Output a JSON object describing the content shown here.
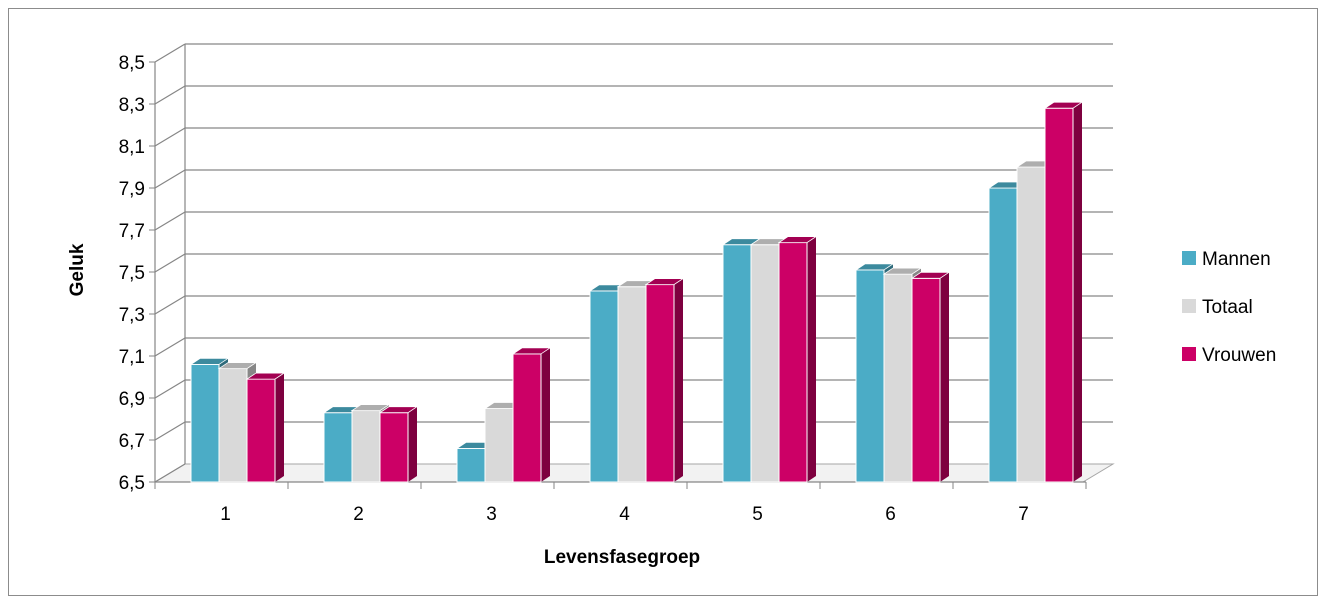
{
  "chart_data": {
    "type": "bar",
    "title": "",
    "xlabel": "Levensfasegroep",
    "ylabel": "Geluk",
    "categories": [
      "1",
      "2",
      "3",
      "4",
      "5",
      "6",
      "7"
    ],
    "series": [
      {
        "name": "Mannen",
        "values": [
          7.06,
          6.83,
          6.66,
          7.41,
          7.63,
          7.51,
          7.9
        ],
        "color": "#4bacc6"
      },
      {
        "name": "Totaal",
        "values": [
          7.04,
          6.84,
          6.85,
          7.43,
          7.63,
          7.49,
          8.0
        ],
        "color": "#d9d9d9"
      },
      {
        "name": "Vrouwen",
        "values": [
          6.99,
          6.83,
          7.11,
          7.44,
          7.64,
          7.47,
          8.28
        ],
        "color": "#cc0066"
      }
    ],
    "ylim": [
      6.5,
      8.5
    ],
    "yticks": [
      "6,5",
      "6,7",
      "6,9",
      "7,1",
      "7,3",
      "7,5",
      "7,7",
      "7,9",
      "8,1",
      "8,3",
      "8,5"
    ],
    "grid": true,
    "legend_position": "right",
    "style": "3d-clustered-column"
  }
}
